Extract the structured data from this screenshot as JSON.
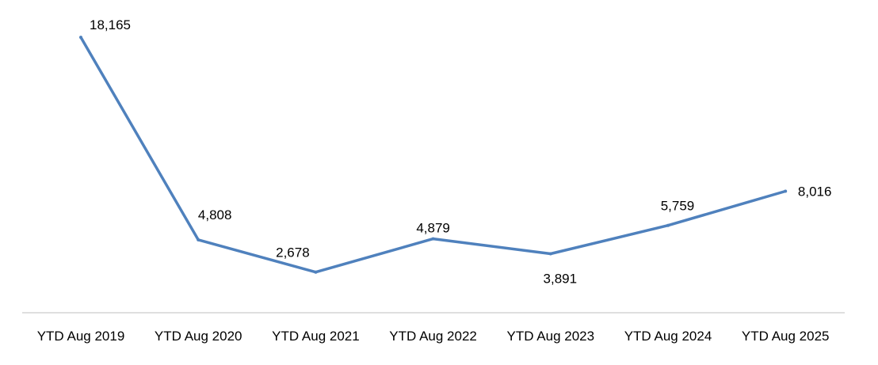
{
  "chart_data": {
    "type": "line",
    "title": "",
    "xlabel": "",
    "ylabel": "",
    "categories": [
      "YTD Aug 2019",
      "YTD Aug 2020",
      "YTD Aug 2021",
      "YTD Aug 2022",
      "YTD Aug 2023",
      "YTD Aug 2024",
      "YTD Aug 2025"
    ],
    "series": [
      {
        "values": [
          18165,
          4808,
          2678,
          4879,
          3891,
          5759,
          8016
        ],
        "data_labels": [
          "18,165",
          "4,808",
          "2,678",
          "4,879",
          "3,891",
          "5,759",
          "8,016"
        ],
        "color": "#4f81bd"
      }
    ],
    "grid": false,
    "legend": "none",
    "axis_line_color": "#bfbfbf"
  }
}
